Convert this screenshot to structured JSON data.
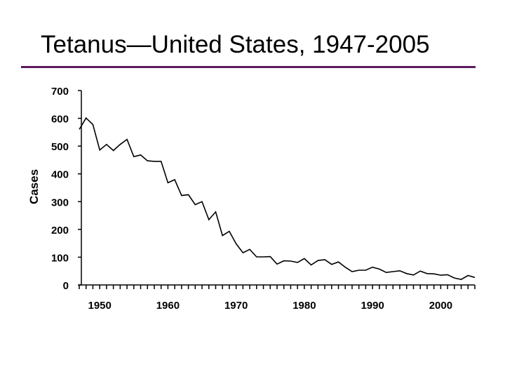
{
  "slide": {
    "title": "Tetanus—United States, 1947-2005",
    "accent_color": "#5b1a5e"
  },
  "chart_data": {
    "type": "line",
    "title": "Tetanus—United States, 1947-2005",
    "xlabel": "",
    "ylabel": "Cases",
    "xlim": [
      1947,
      2005
    ],
    "ylim": [
      0,
      700
    ],
    "y_ticks": [
      0,
      100,
      200,
      300,
      400,
      500,
      600,
      700
    ],
    "x_tick_labels": [
      1950,
      1960,
      1970,
      1980,
      1990,
      2000
    ],
    "grid": false,
    "line_color": "#000000",
    "series": [
      {
        "x": [
          1947,
          1948,
          1949,
          1950,
          1951,
          1952,
          1953,
          1954,
          1955,
          1956,
          1957,
          1958,
          1959,
          1960,
          1961,
          1962,
          1963,
          1964,
          1965,
          1966,
          1967,
          1968,
          1969,
          1970,
          1971,
          1972,
          1973,
          1974,
          1975,
          1976,
          1977,
          1978,
          1979,
          1980,
          1981,
          1982,
          1983,
          1984,
          1985,
          1986,
          1987,
          1988,
          1989,
          1990,
          1991,
          1992,
          1993,
          1994,
          1995,
          1996,
          1997,
          1998,
          1999,
          2000,
          2001,
          2002,
          2003,
          2004,
          2005
        ],
        "values": [
          560,
          601,
          578,
          486,
          506,
          484,
          506,
          524,
          462,
          468,
          447,
          445,
          445,
          368,
          379,
          322,
          325,
          289,
          300,
          235,
          263,
          178,
          193,
          148,
          116,
          128,
          101,
          101,
          102,
          75,
          87,
          86,
          81,
          95,
          72,
          88,
          91,
          74,
          83,
          64,
          48,
          53,
          53,
          64,
          57,
          45,
          48,
          51,
          41,
          36,
          50,
          41,
          40,
          35,
          37,
          25,
          20,
          34,
          27
        ]
      }
    ]
  }
}
